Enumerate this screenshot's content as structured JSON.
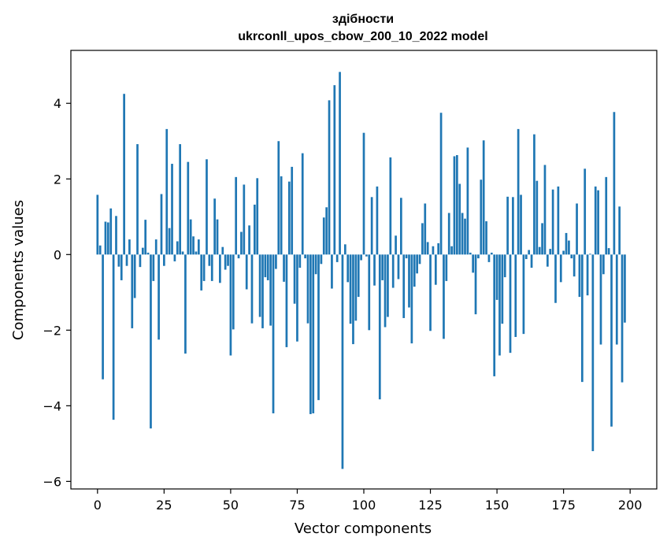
{
  "chart_data": {
    "type": "bar",
    "title": "здібности",
    "subtitle": "ukrconll_upos_cbow_200_10_2022 model",
    "xlabel": "Vector components",
    "ylabel": "Components values",
    "xlim": [
      -10,
      210
    ],
    "ylim": [
      -6.2,
      5.4
    ],
    "xticks": [
      0,
      25,
      50,
      75,
      100,
      125,
      150,
      175,
      200
    ],
    "yticks": [
      -6,
      -4,
      -2,
      0,
      2,
      4
    ],
    "ytick_labels": [
      "−6",
      "−4",
      "−2",
      "0",
      "2",
      "4"
    ],
    "grid": false,
    "color": "#1f77b4",
    "values": [
      1.58,
      0.24,
      -3.3,
      0.87,
      0.85,
      1.22,
      -4.37,
      1.02,
      -0.32,
      -0.68,
      4.25,
      -0.3,
      0.4,
      -1.95,
      -1.15,
      2.92,
      -0.33,
      0.18,
      0.92,
      0.05,
      -4.6,
      -0.7,
      0.4,
      -2.25,
      1.6,
      -0.3,
      3.32,
      0.7,
      2.4,
      -0.18,
      0.35,
      2.92,
      0.08,
      -2.62,
      2.45,
      0.93,
      0.48,
      0.08,
      0.4,
      -0.95,
      -0.7,
      2.52,
      -0.3,
      -0.7,
      1.48,
      0.93,
      -0.75,
      0.2,
      -0.4,
      -0.3,
      -2.67,
      -1.98,
      2.05,
      -0.1,
      0.6,
      1.85,
      -0.92,
      0.77,
      -1.82,
      1.32,
      2.02,
      -1.65,
      -1.95,
      -0.6,
      -0.68,
      -1.88,
      -4.2,
      -0.38,
      3.0,
      2.07,
      -0.72,
      -2.45,
      1.93,
      2.32,
      -1.3,
      -2.3,
      -0.35,
      2.68,
      -0.1,
      -1.82,
      -4.22,
      -4.2,
      -0.52,
      -3.85,
      -0.25,
      0.98,
      1.25,
      4.08,
      -0.9,
      4.48,
      -0.2,
      4.83,
      -5.67,
      0.27,
      -0.73,
      -1.83,
      -2.37,
      -1.75,
      -1.12,
      -0.15,
      3.22,
      -0.05,
      -2.0,
      1.52,
      -0.82,
      1.8,
      -3.83,
      -0.68,
      -1.92,
      -1.65,
      2.57,
      -0.88,
      0.5,
      -0.65,
      1.5,
      -1.68,
      -0.1,
      -1.4,
      -2.35,
      -0.85,
      -0.5,
      -0.25,
      0.83,
      1.35,
      0.33,
      -2.02,
      0.22,
      -0.8,
      0.3,
      3.75,
      -2.23,
      -0.7,
      1.1,
      0.22,
      2.6,
      2.63,
      1.87,
      1.1,
      0.95,
      2.83,
      0.05,
      -0.48,
      -1.58,
      -0.1,
      1.98,
      3.02,
      0.88,
      -0.2,
      0.05,
      -3.22,
      -1.2,
      -2.67,
      -1.83,
      -0.6,
      1.53,
      -2.6,
      1.52,
      -2.18,
      3.32,
      1.58,
      -2.1,
      -0.12,
      0.12,
      -0.35,
      3.18,
      1.95,
      0.2,
      0.83,
      2.37,
      -0.32,
      0.15,
      1.72,
      -1.28,
      1.8,
      -0.73,
      0.1,
      0.57,
      0.37,
      -0.1,
      -0.58,
      1.35,
      -1.12,
      -3.37,
      2.27,
      -1.08,
      0.02,
      -5.2,
      1.8,
      1.7,
      -2.38,
      -0.52,
      2.05,
      0.17,
      -4.55,
      3.77,
      -2.38,
      1.27,
      -3.38,
      -1.8
    ]
  }
}
